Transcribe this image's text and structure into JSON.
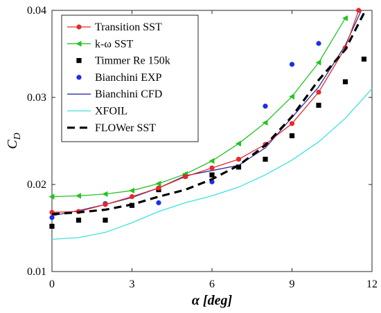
{
  "chart_data": {
    "type": "line",
    "xlabel": "α [deg]",
    "ylabel": "C_D",
    "xlim": [
      0,
      12
    ],
    "ylim": [
      0.01,
      0.04
    ],
    "xticks": [
      0,
      3,
      6,
      9,
      12
    ],
    "xtick_labels": [
      "0",
      "3",
      "6",
      "9",
      "12"
    ],
    "yticks": [
      0.01,
      0.02,
      0.03,
      0.04
    ],
    "ytick_labels": [
      "0.01",
      "0.02",
      "0.03",
      "0.04"
    ],
    "grid": false,
    "legend_position": "top-left",
    "series": [
      {
        "name": "Transition SST",
        "style": "line-marker",
        "marker": "circle",
        "color": "#e8282a",
        "x": [
          0,
          1,
          2,
          3,
          4,
          5,
          6,
          7,
          8,
          9,
          10,
          11,
          11.5
        ],
        "y": [
          0.0168,
          0.0169,
          0.0177,
          0.0186,
          0.0196,
          0.0209,
          0.0219,
          0.0229,
          0.0246,
          0.027,
          0.0306,
          0.0357,
          0.04
        ]
      },
      {
        "name": "k-ω SST",
        "style": "line-marker",
        "marker": "triangle-left",
        "color": "#22c322",
        "x": [
          0,
          1,
          2,
          3,
          4,
          5,
          6,
          7,
          8,
          9,
          10,
          11
        ],
        "y": [
          0.0186,
          0.0187,
          0.0189,
          0.0193,
          0.0201,
          0.0212,
          0.0227,
          0.0247,
          0.0271,
          0.0301,
          0.034,
          0.0391
        ]
      },
      {
        "name": "Timmer Re 150k",
        "style": "marker",
        "marker": "square",
        "color": "#000000",
        "x": [
          0,
          1,
          2,
          3,
          4,
          5,
          6,
          7,
          8,
          9,
          10,
          11,
          11.7
        ],
        "y": [
          0.0152,
          0.0159,
          0.0159,
          0.0176,
          0.0194,
          0.021,
          0.0211,
          0.022,
          0.0229,
          0.0256,
          0.0291,
          0.0318,
          0.0344
        ]
      },
      {
        "name": "Bianchini EXP",
        "style": "marker",
        "marker": "circle",
        "color": "#1f2fe6",
        "x": [
          0,
          2,
          4,
          6,
          8,
          9,
          10
        ],
        "y": [
          0.0162,
          0.0178,
          0.0179,
          0.0203,
          0.029,
          0.0338,
          0.0362
        ]
      },
      {
        "name": "Bianchini CFD",
        "style": "line",
        "color": "#2b2ba3",
        "x": [
          0,
          1,
          2,
          3,
          4,
          5,
          6,
          7,
          8,
          9,
          10,
          11,
          11.6
        ],
        "y": [
          0.0164,
          0.017,
          0.0177,
          0.0185,
          0.0196,
          0.021,
          0.0216,
          0.0222,
          0.0242,
          0.0277,
          0.0312,
          0.036,
          0.04
        ]
      },
      {
        "name": "XFOIL",
        "style": "line",
        "color": "#3ee0e0",
        "x": [
          0,
          1,
          2,
          3,
          4,
          5,
          6,
          7,
          8,
          9,
          10,
          11,
          12
        ],
        "y": [
          0.0137,
          0.0139,
          0.0145,
          0.0156,
          0.0169,
          0.0179,
          0.0187,
          0.0197,
          0.0211,
          0.0228,
          0.0249,
          0.0276,
          0.031
        ]
      },
      {
        "name": "FLOWer SST",
        "style": "dashed",
        "color": "#000000",
        "x": [
          0,
          1,
          2,
          3,
          4,
          5,
          6,
          7,
          8,
          9,
          10,
          11,
          11.7
        ],
        "y": [
          0.0166,
          0.0168,
          0.0171,
          0.0177,
          0.0186,
          0.0194,
          0.0206,
          0.0222,
          0.0245,
          0.0278,
          0.032,
          0.0355,
          0.0397
        ]
      }
    ]
  }
}
